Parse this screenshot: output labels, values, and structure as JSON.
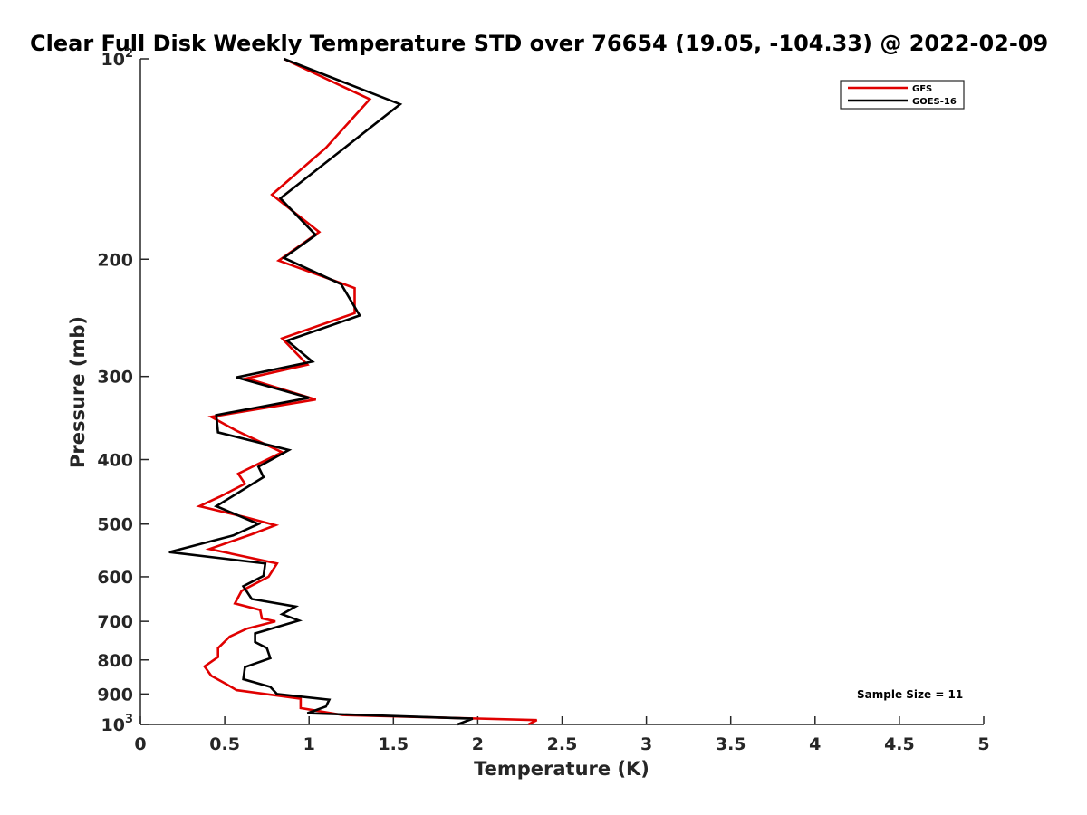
{
  "chart_data": {
    "type": "line",
    "title": "Clear Full Disk Weekly Temperature STD over 76654 (19.05, -104.33) @ 2022-02-09",
    "xlabel": "Temperature (K)",
    "ylabel": "Pressure (mb)",
    "xlim": [
      0,
      5
    ],
    "ylim": [
      100,
      1000
    ],
    "y_scale": "log",
    "y_reversed": true,
    "x_ticks": [
      "0",
      "0.5",
      "1",
      "1.5",
      "2",
      "2.5",
      "3",
      "3.5",
      "4",
      "4.5",
      "5"
    ],
    "y_ticks": [
      {
        "value": 100,
        "base": "10",
        "exp": "2"
      },
      {
        "value": 200,
        "label": "200"
      },
      {
        "value": 300,
        "label": "300"
      },
      {
        "value": 400,
        "label": "400"
      },
      {
        "value": 500,
        "label": "500"
      },
      {
        "value": 600,
        "label": "600"
      },
      {
        "value": 700,
        "label": "700"
      },
      {
        "value": 800,
        "label": "800"
      },
      {
        "value": 900,
        "label": "900"
      },
      {
        "value": 1000,
        "base": "10",
        "exp": "3"
      }
    ],
    "legend_position": "top-right",
    "annotation": "Sample Size = 11",
    "series": [
      {
        "name": "GFS",
        "color": "#e00000",
        "points": [
          {
            "t": 0.85,
            "p": 100
          },
          {
            "t": 1.36,
            "p": 115
          },
          {
            "t": 1.1,
            "p": 136
          },
          {
            "t": 0.78,
            "p": 160
          },
          {
            "t": 1.06,
            "p": 182
          },
          {
            "t": 0.82,
            "p": 201
          },
          {
            "t": 1.27,
            "p": 221
          },
          {
            "t": 1.27,
            "p": 241
          },
          {
            "t": 0.84,
            "p": 263
          },
          {
            "t": 0.99,
            "p": 288
          },
          {
            "t": 0.63,
            "p": 302
          },
          {
            "t": 1.04,
            "p": 325
          },
          {
            "t": 0.42,
            "p": 345
          },
          {
            "t": 0.57,
            "p": 362
          },
          {
            "t": 0.84,
            "p": 390
          },
          {
            "t": 0.58,
            "p": 420
          },
          {
            "t": 0.62,
            "p": 435
          },
          {
            "t": 0.47,
            "p": 455
          },
          {
            "t": 0.35,
            "p": 470
          },
          {
            "t": 0.62,
            "p": 488
          },
          {
            "t": 0.8,
            "p": 502
          },
          {
            "t": 0.66,
            "p": 518
          },
          {
            "t": 0.41,
            "p": 545
          },
          {
            "t": 0.81,
            "p": 573
          },
          {
            "t": 0.76,
            "p": 600
          },
          {
            "t": 0.6,
            "p": 630
          },
          {
            "t": 0.56,
            "p": 658
          },
          {
            "t": 0.71,
            "p": 673
          },
          {
            "t": 0.72,
            "p": 693
          },
          {
            "t": 0.8,
            "p": 700
          },
          {
            "t": 0.63,
            "p": 718
          },
          {
            "t": 0.53,
            "p": 738
          },
          {
            "t": 0.46,
            "p": 768
          },
          {
            "t": 0.46,
            "p": 792
          },
          {
            "t": 0.38,
            "p": 818
          },
          {
            "t": 0.42,
            "p": 845
          },
          {
            "t": 0.51,
            "p": 870
          },
          {
            "t": 0.57,
            "p": 888
          },
          {
            "t": 0.95,
            "p": 915
          },
          {
            "t": 0.95,
            "p": 945
          },
          {
            "t": 1.2,
            "p": 968
          },
          {
            "t": 2.35,
            "p": 985
          },
          {
            "t": 2.3,
            "p": 1000
          }
        ]
      },
      {
        "name": "GOES-16",
        "color": "#000000",
        "points": [
          {
            "t": 0.85,
            "p": 100
          },
          {
            "t": 1.54,
            "p": 117
          },
          {
            "t": 0.83,
            "p": 162
          },
          {
            "t": 1.04,
            "p": 184
          },
          {
            "t": 0.85,
            "p": 199
          },
          {
            "t": 1.19,
            "p": 218
          },
          {
            "t": 1.3,
            "p": 243
          },
          {
            "t": 0.87,
            "p": 265
          },
          {
            "t": 1.02,
            "p": 285
          },
          {
            "t": 0.57,
            "p": 301
          },
          {
            "t": 1.0,
            "p": 323
          },
          {
            "t": 0.45,
            "p": 343
          },
          {
            "t": 0.46,
            "p": 364
          },
          {
            "t": 0.88,
            "p": 387
          },
          {
            "t": 0.7,
            "p": 410
          },
          {
            "t": 0.73,
            "p": 425
          },
          {
            "t": 0.45,
            "p": 470
          },
          {
            "t": 0.7,
            "p": 500
          },
          {
            "t": 0.55,
            "p": 520
          },
          {
            "t": 0.17,
            "p": 551
          },
          {
            "t": 0.74,
            "p": 573
          },
          {
            "t": 0.73,
            "p": 598
          },
          {
            "t": 0.61,
            "p": 620
          },
          {
            "t": 0.66,
            "p": 648
          },
          {
            "t": 0.92,
            "p": 665
          },
          {
            "t": 0.84,
            "p": 683
          },
          {
            "t": 0.94,
            "p": 698
          },
          {
            "t": 0.68,
            "p": 730
          },
          {
            "t": 0.68,
            "p": 752
          },
          {
            "t": 0.75,
            "p": 768
          },
          {
            "t": 0.77,
            "p": 795
          },
          {
            "t": 0.62,
            "p": 820
          },
          {
            "t": 0.61,
            "p": 855
          },
          {
            "t": 0.77,
            "p": 878
          },
          {
            "t": 0.81,
            "p": 900
          },
          {
            "t": 1.12,
            "p": 918
          },
          {
            "t": 1.1,
            "p": 940
          },
          {
            "t": 0.99,
            "p": 962
          },
          {
            "t": 1.97,
            "p": 980
          },
          {
            "t": 1.88,
            "p": 1000
          }
        ]
      }
    ]
  }
}
